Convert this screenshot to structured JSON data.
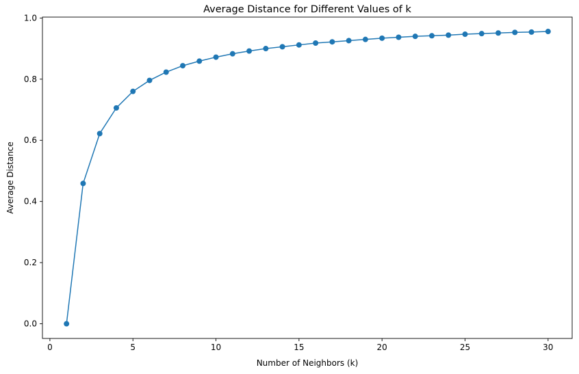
{
  "chart_data": {
    "type": "line",
    "title": "Average Distance for Different Values of k",
    "xlabel": "Number of Neighbors (k)",
    "ylabel": "Average Distance",
    "xlim": [
      -0.45,
      31.45
    ],
    "ylim": [
      -0.048,
      1.003
    ],
    "xticks": [
      0,
      5,
      10,
      15,
      20,
      25,
      30
    ],
    "xtick_labels": [
      "0",
      "5",
      "10",
      "15",
      "20",
      "25",
      "30"
    ],
    "yticks": [
      0.0,
      0.2,
      0.4,
      0.6,
      0.8,
      1.0
    ],
    "ytick_labels": [
      "0.0",
      "0.2",
      "0.4",
      "0.6",
      "0.8",
      "1.0"
    ],
    "grid": false,
    "marker": "circle",
    "color": "#1f77b4",
    "series": [
      {
        "x": [
          1,
          2,
          3,
          4,
          5,
          6,
          7,
          8,
          9,
          10,
          11,
          12,
          13,
          14,
          15,
          16,
          17,
          18,
          19,
          20,
          21,
          22,
          23,
          24,
          25,
          26,
          27,
          28,
          29,
          30
        ],
        "values": [
          0.0,
          0.459,
          0.622,
          0.706,
          0.76,
          0.796,
          0.823,
          0.844,
          0.859,
          0.872,
          0.883,
          0.892,
          0.9,
          0.906,
          0.912,
          0.918,
          0.922,
          0.926,
          0.93,
          0.934,
          0.937,
          0.94,
          0.942,
          0.944,
          0.947,
          0.949,
          0.951,
          0.953,
          0.954,
          0.956
        ]
      }
    ]
  }
}
